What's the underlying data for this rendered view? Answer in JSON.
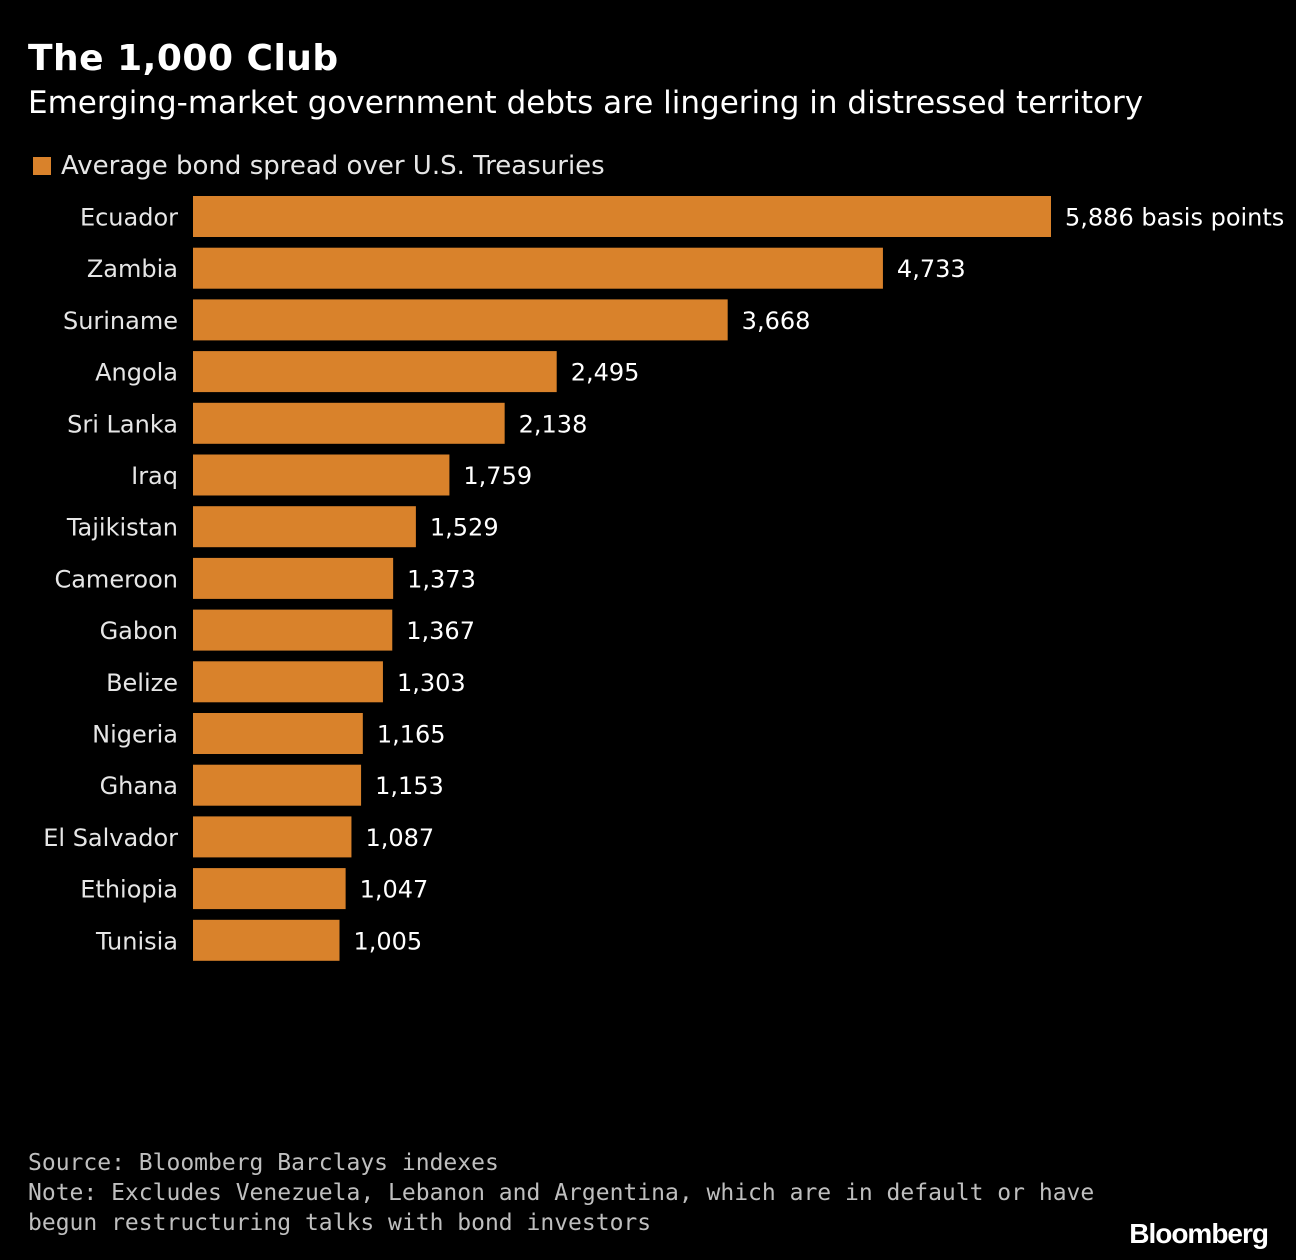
{
  "title": "The 1,000 Club",
  "subtitle": "Emerging-market government debts are lingering in distressed territory",
  "legend": {
    "label": "Average bond spread over U.S. Treasuries",
    "color": "#d9822b"
  },
  "footer": {
    "source": "Source: Bloomberg Barclays indexes",
    "note_line1": "Note: Excludes Venezuela, Lebanon and Argentina, which are in default or have",
    "note_line2": "begun restructuring talks with bond investors"
  },
  "brand": "Bloomberg",
  "chart_data": {
    "type": "bar",
    "orientation": "horizontal",
    "title": "The 1,000 Club",
    "subtitle": "Emerging-market government debts are lingering in distressed territory",
    "categories": [
      "Ecuador",
      "Zambia",
      "Suriname",
      "Angola",
      "Sri Lanka",
      "Iraq",
      "Tajikistan",
      "Cameroon",
      "Gabon",
      "Belize",
      "Nigeria",
      "Ghana",
      "El Salvador",
      "Ethiopia",
      "Tunisia"
    ],
    "series": [
      {
        "name": "Average bond spread over U.S. Treasuries",
        "color": "#d9822b",
        "values": [
          5886,
          4733,
          3668,
          2495,
          2138,
          1759,
          1529,
          1373,
          1367,
          1303,
          1165,
          1153,
          1087,
          1047,
          1005
        ]
      }
    ],
    "value_labels": [
      "5,886 basis points",
      "4,733",
      "3,668",
      "2,495",
      "2,138",
      "1,759",
      "1,529",
      "1,373",
      "1,367",
      "1,303",
      "1,165",
      "1,153",
      "1,087",
      "1,047",
      "1,005"
    ],
    "xlim": [
      0,
      5886
    ],
    "grid": false,
    "legend_position": "top-left"
  }
}
